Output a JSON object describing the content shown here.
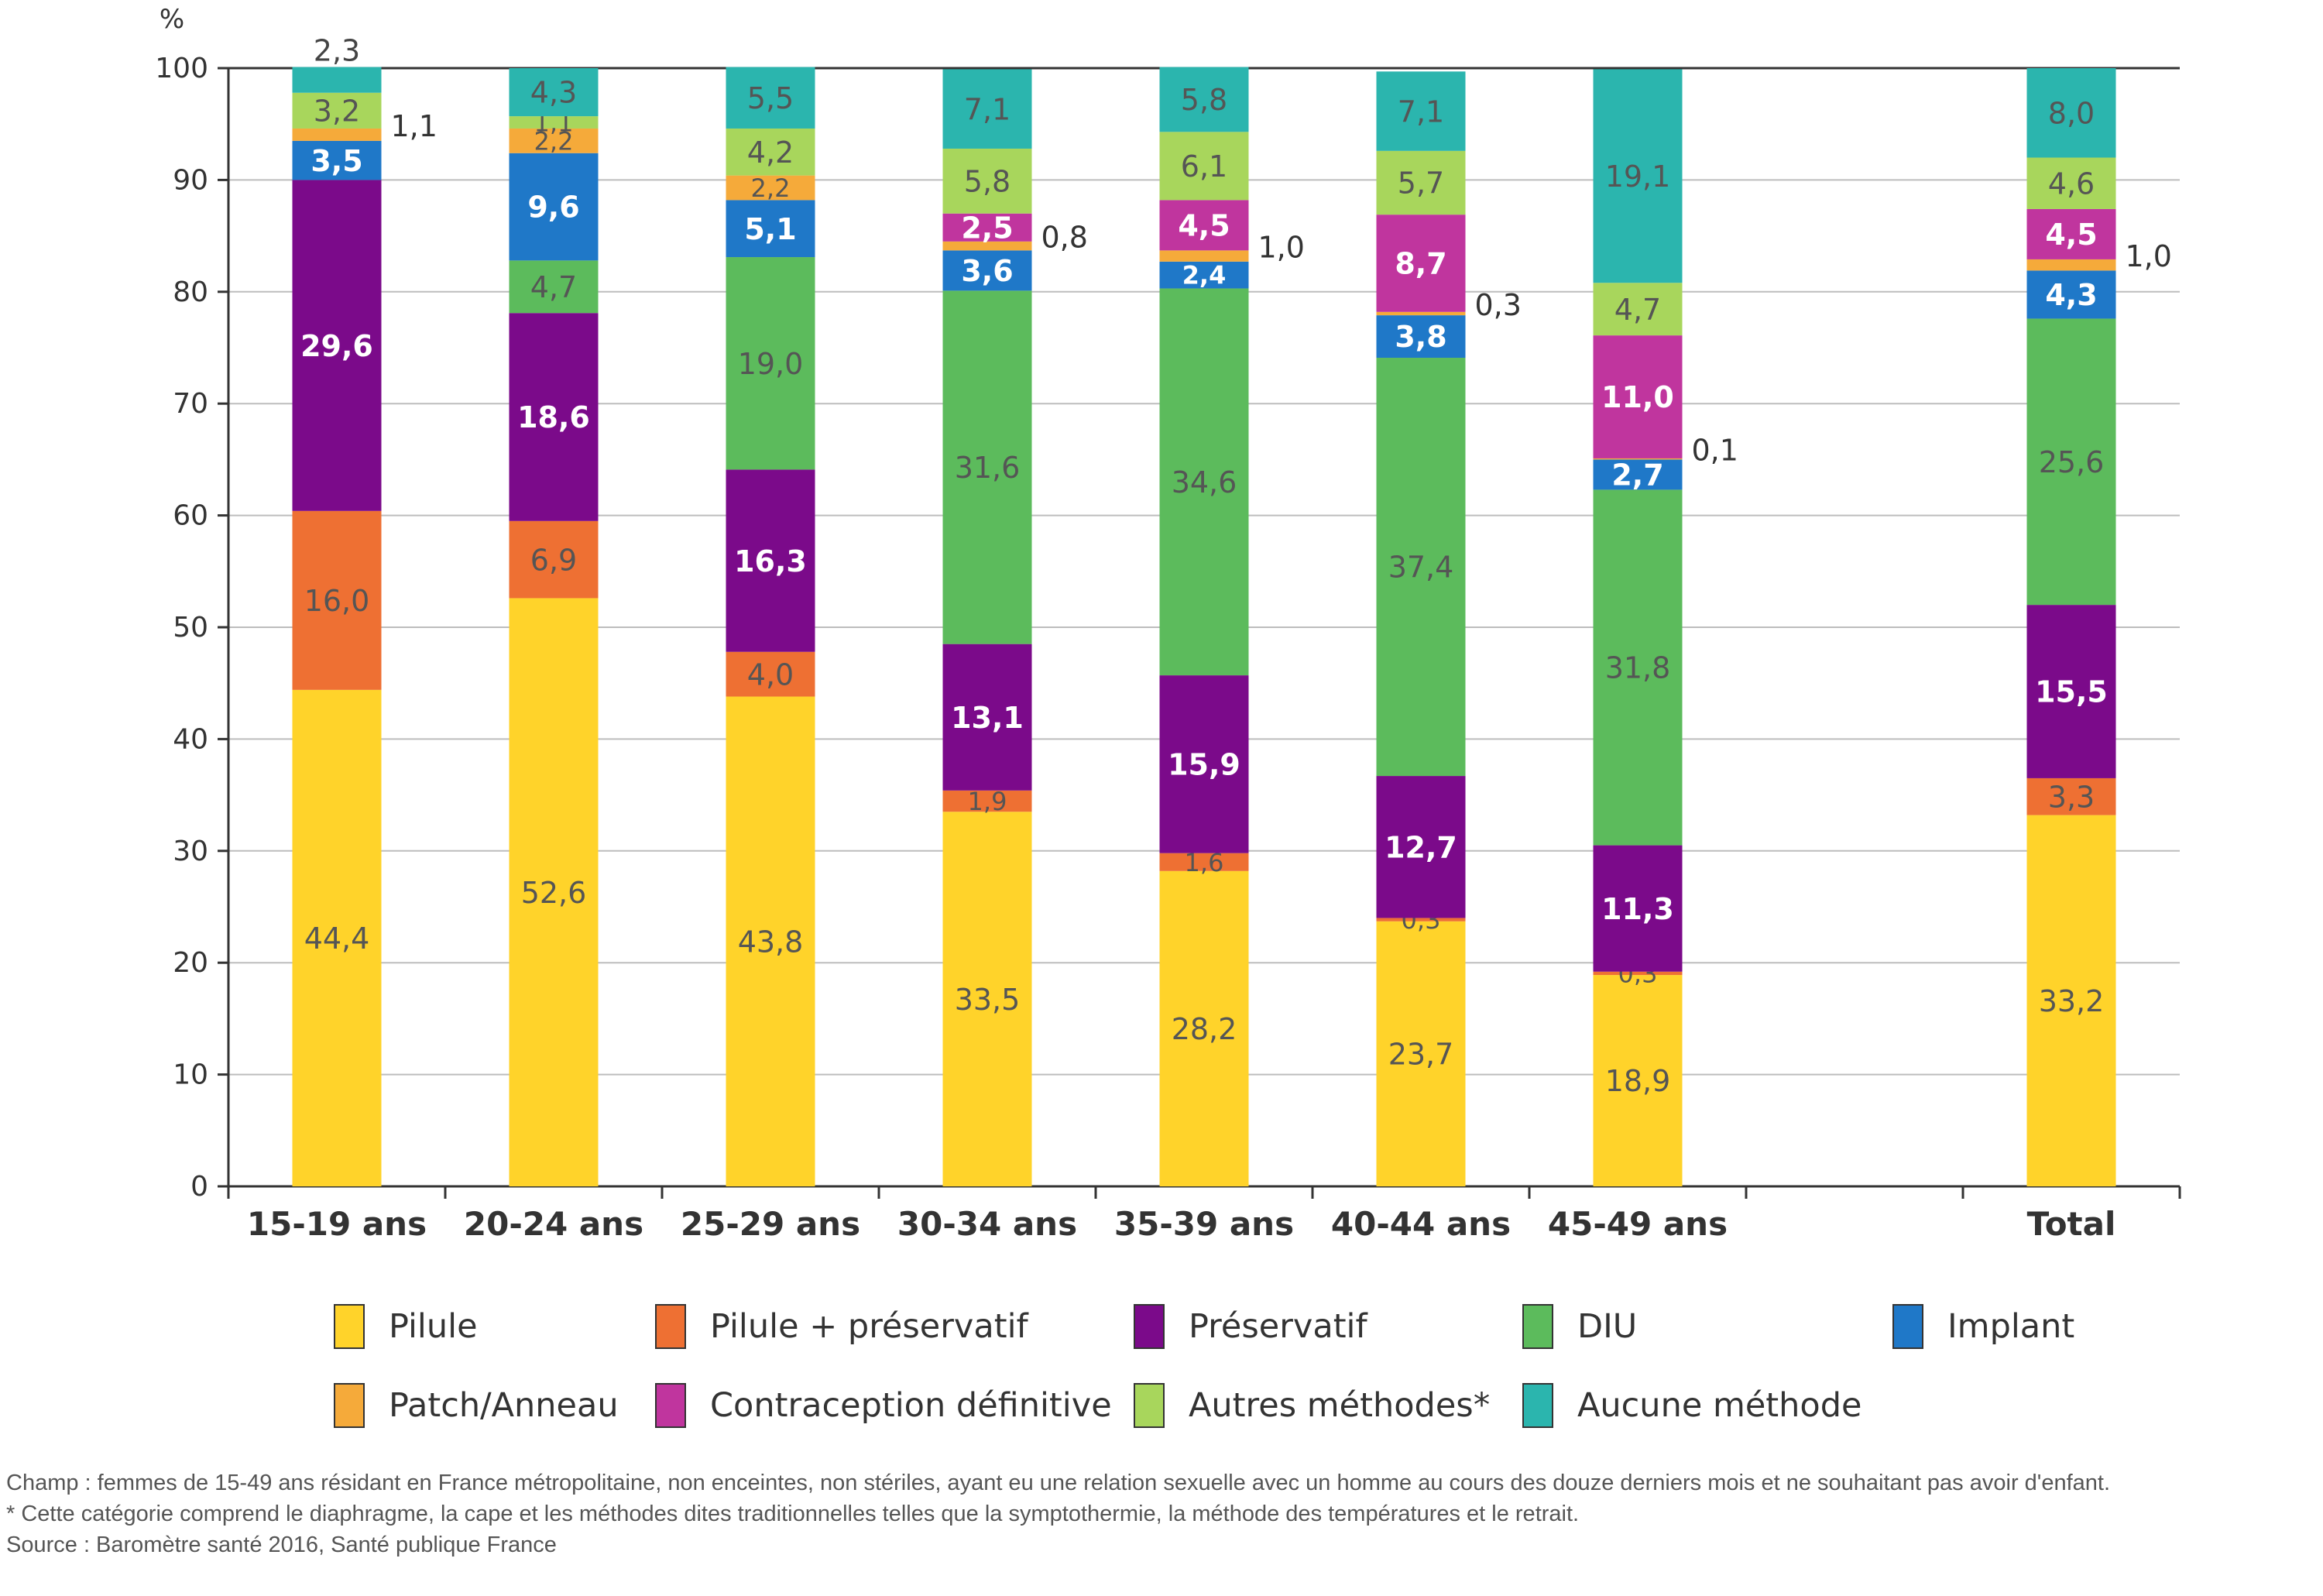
{
  "chart_data": {
    "type": "bar",
    "stacked": true,
    "ylabel": "%",
    "ylim": [
      0,
      100
    ],
    "yticks": [
      0,
      10,
      20,
      30,
      40,
      50,
      60,
      70,
      80,
      90,
      100
    ],
    "grid": true,
    "legend_position": "bottom",
    "categories": [
      "15-19 ans",
      "20-24 ans",
      "25-29 ans",
      "30-34 ans",
      "35-39 ans",
      "40-44 ans",
      "45-49 ans",
      "",
      "Total"
    ],
    "series": [
      {
        "name": "Pilule",
        "color": "#FFD32A",
        "label_color": "#555555",
        "values": [
          44.4,
          52.6,
          43.8,
          33.5,
          28.2,
          23.7,
          18.9,
          null,
          33.2
        ],
        "labels": [
          "44,4",
          "52,6",
          "43,8",
          "33,5",
          "28,2",
          "23,7",
          "18,9",
          "",
          "33,2"
        ]
      },
      {
        "name": "Pilule + préservatif",
        "color": "#EE7033",
        "label_color": "#555555",
        "values": [
          16.0,
          6.9,
          4.0,
          1.9,
          1.6,
          0.3,
          0.3,
          null,
          3.3
        ],
        "labels": [
          "16,0",
          "6,9",
          "4,0",
          "1,9",
          "1,6",
          "0,3",
          "0,3",
          "",
          "3,3"
        ]
      },
      {
        "name": "Préservatif",
        "color": "#7B0A8A",
        "label_color": "#ffffff",
        "values": [
          29.6,
          18.6,
          16.3,
          13.1,
          15.9,
          12.7,
          11.3,
          null,
          15.5
        ],
        "labels": [
          "29,6",
          "18,6",
          "16,3",
          "13,1",
          "15,9",
          "12,7",
          "11,3",
          "",
          "15,5"
        ]
      },
      {
        "name": "DIU",
        "color": "#5CBB5C",
        "label_color": "#555555",
        "values": [
          0,
          4.7,
          19.0,
          31.6,
          34.6,
          37.4,
          31.8,
          null,
          25.6
        ],
        "labels": [
          "",
          "4,7",
          "19,0",
          "31,6",
          "34,6",
          "37,4",
          "31,8",
          "",
          "25,6"
        ]
      },
      {
        "name": "Implant",
        "color": "#1F78C8",
        "label_color": "#ffffff",
        "values": [
          3.5,
          9.6,
          5.1,
          3.6,
          2.4,
          3.8,
          2.7,
          null,
          4.3
        ],
        "labels": [
          "3,5",
          "9,6",
          "5,1",
          "3,6",
          "2,4",
          "3,8",
          "2,7",
          "",
          "4,3"
        ]
      },
      {
        "name": "Patch/Anneau",
        "color": "#F5AA3A",
        "label_color": "#555555",
        "values": [
          1.1,
          2.2,
          2.2,
          0.8,
          1.0,
          0.3,
          0.1,
          null,
          1.0
        ],
        "labels": [
          "1,1",
          "2,2",
          "2,2",
          "0,8",
          "1,0",
          "0,3",
          "0,1",
          "",
          "1,0"
        ],
        "outside_label": [
          true,
          false,
          false,
          true,
          true,
          true,
          true,
          false,
          true
        ]
      },
      {
        "name": "Contraception définitive",
        "color": "#C0359E",
        "label_color": "#ffffff",
        "values": [
          0,
          0,
          0,
          2.5,
          4.5,
          8.7,
          11.0,
          null,
          4.5
        ],
        "labels": [
          "",
          "",
          "",
          "2,5",
          "4,5",
          "8,7",
          "11,0",
          "",
          "4,5"
        ]
      },
      {
        "name": "Autres méthodes*",
        "color": "#A8D65C",
        "label_color": "#555555",
        "values": [
          3.2,
          1.1,
          4.2,
          5.8,
          6.1,
          5.7,
          4.7,
          null,
          4.6
        ],
        "labels": [
          "3,2",
          "1,1",
          "4,2",
          "5,8",
          "6,1",
          "5,7",
          "4,7",
          "",
          "4,6"
        ]
      },
      {
        "name": "Aucune méthode",
        "color": "#2BB5AE",
        "label_color": "#555555",
        "values": [
          2.3,
          4.3,
          5.5,
          7.1,
          5.8,
          7.1,
          19.1,
          null,
          8.0
        ],
        "labels": [
          "2,3",
          "4,3",
          "5,5",
          "7,1",
          "5,8",
          "7,1",
          "19,1",
          "",
          "8,0"
        ]
      }
    ]
  },
  "notes": {
    "champ": "Champ : femmes de 15-49 ans résidant en France métropolitaine, non enceintes, non stériles, ayant eu une relation sexuelle avec un homme au cours des douze derniers mois et ne souhaitant pas avoir d'enfant.",
    "footnote": "* Cette catégorie comprend le diaphragme, la cape et les méthodes dites traditionnelles telles que la symptothermie, la méthode des températures et le retrait.",
    "source": "Source : Baromètre santé 2016, Santé publique France"
  }
}
